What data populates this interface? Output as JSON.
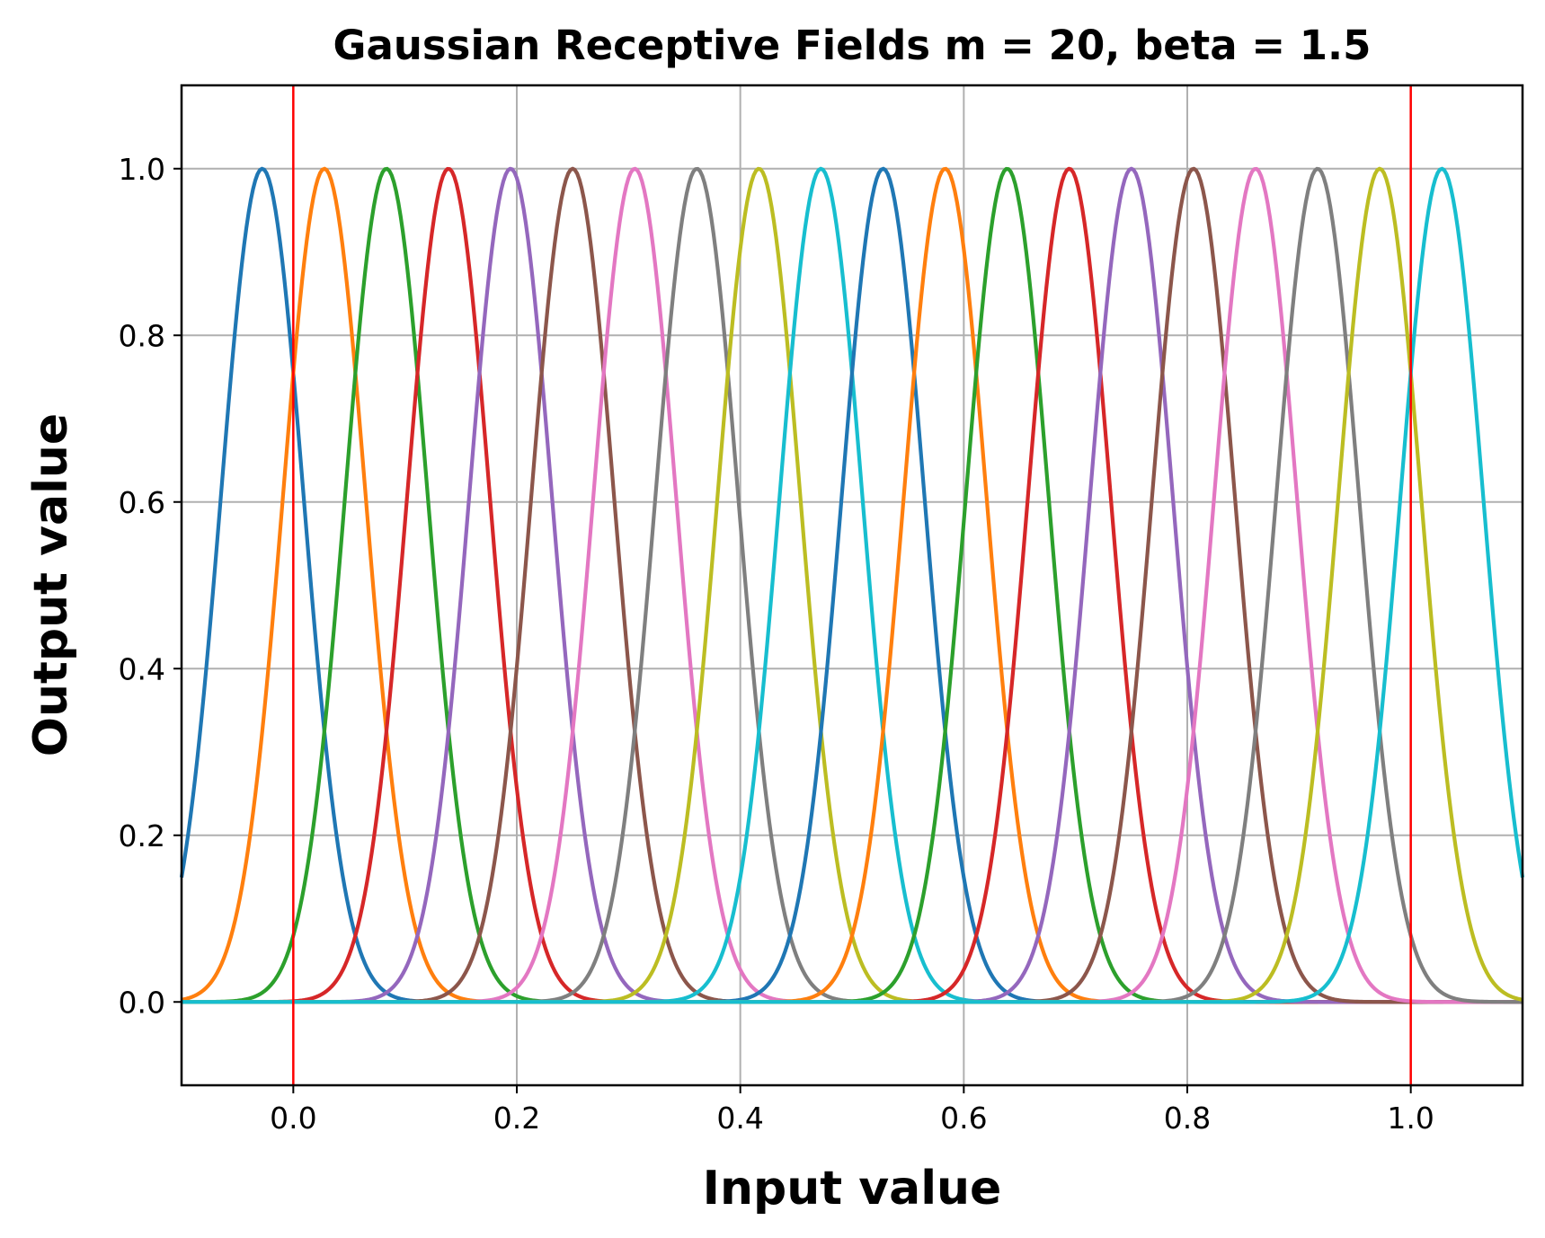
{
  "chart_data": {
    "type": "line",
    "title": "Gaussian Receptive Fields m = 20, beta = 1.5",
    "xlabel": "Input value",
    "ylabel": "Output value",
    "xlim": [
      -0.1,
      1.1
    ],
    "ylim": [
      -0.1,
      1.1
    ],
    "xticks": [
      "0.0",
      "0.2",
      "0.4",
      "0.6",
      "0.8",
      "1.0"
    ],
    "yticks": [
      "0.0",
      "0.2",
      "0.4",
      "0.6",
      "0.8",
      "1.0"
    ],
    "grid": true,
    "legend": "none",
    "reference_lines": {
      "x": [
        0.0,
        1.0
      ],
      "color": "#ff0000"
    },
    "curve": "gaussian",
    "sigma": 0.03704,
    "series": [
      {
        "center": -0.02778,
        "color": "#1f77b4"
      },
      {
        "center": 0.02778,
        "color": "#ff7f0e"
      },
      {
        "center": 0.08333,
        "color": "#2ca02c"
      },
      {
        "center": 0.13889,
        "color": "#d62728"
      },
      {
        "center": 0.19444,
        "color": "#9467bd"
      },
      {
        "center": 0.25,
        "color": "#8c564b"
      },
      {
        "center": 0.30556,
        "color": "#e377c2"
      },
      {
        "center": 0.36111,
        "color": "#7f7f7f"
      },
      {
        "center": 0.41667,
        "color": "#bcbd22"
      },
      {
        "center": 0.47222,
        "color": "#17becf"
      },
      {
        "center": 0.52778,
        "color": "#1f77b4"
      },
      {
        "center": 0.58333,
        "color": "#ff7f0e"
      },
      {
        "center": 0.63889,
        "color": "#2ca02c"
      },
      {
        "center": 0.69444,
        "color": "#d62728"
      },
      {
        "center": 0.75,
        "color": "#9467bd"
      },
      {
        "center": 0.80556,
        "color": "#8c564b"
      },
      {
        "center": 0.86111,
        "color": "#e377c2"
      },
      {
        "center": 0.91667,
        "color": "#7f7f7f"
      },
      {
        "center": 0.97222,
        "color": "#bcbd22"
      },
      {
        "center": 1.02778,
        "color": "#17becf"
      }
    ]
  }
}
